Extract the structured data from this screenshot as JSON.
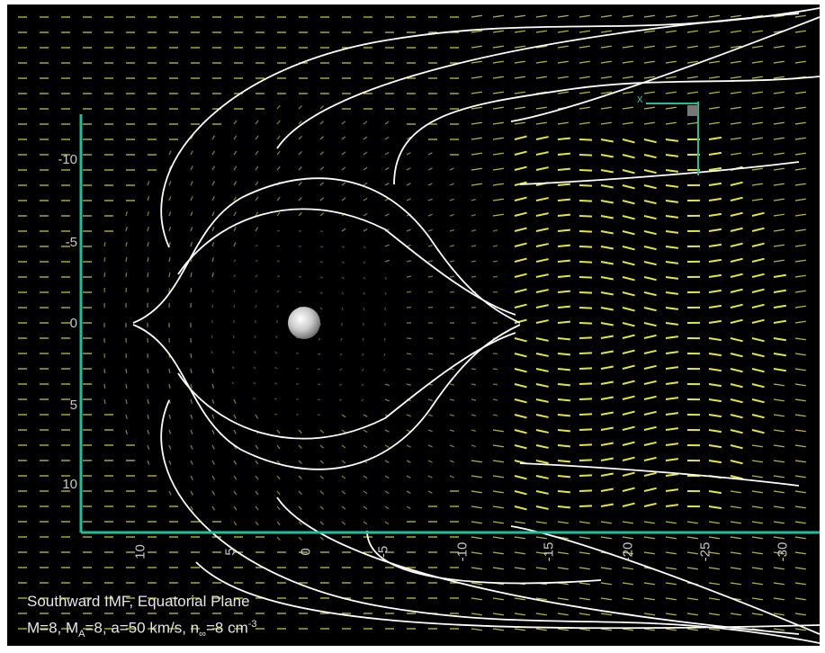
{
  "figure": {
    "caption_line1": "Southward IMF, Equatorial Plane",
    "caption_line2_parts": {
      "m": "M=8, M",
      "ma_sub": "A",
      "rest": "=8, a=50 km/s, n",
      "n_sub": "∞",
      "tail": "=8 cm",
      "exp": "-3"
    },
    "y_axis_ticks": [
      "-10",
      "-5",
      "0",
      "5",
      "10"
    ],
    "x_axis_ticks": [
      "10",
      "5",
      "0",
      "-5",
      "-10",
      "-15",
      "-20",
      "-25",
      "-30"
    ],
    "axis_color": "#1fbf9a",
    "vector_color": "#e6e63a",
    "field_line_color": "#ffffff",
    "planet_color": "#cfcfcf",
    "mini_axis_label": "x"
  }
}
